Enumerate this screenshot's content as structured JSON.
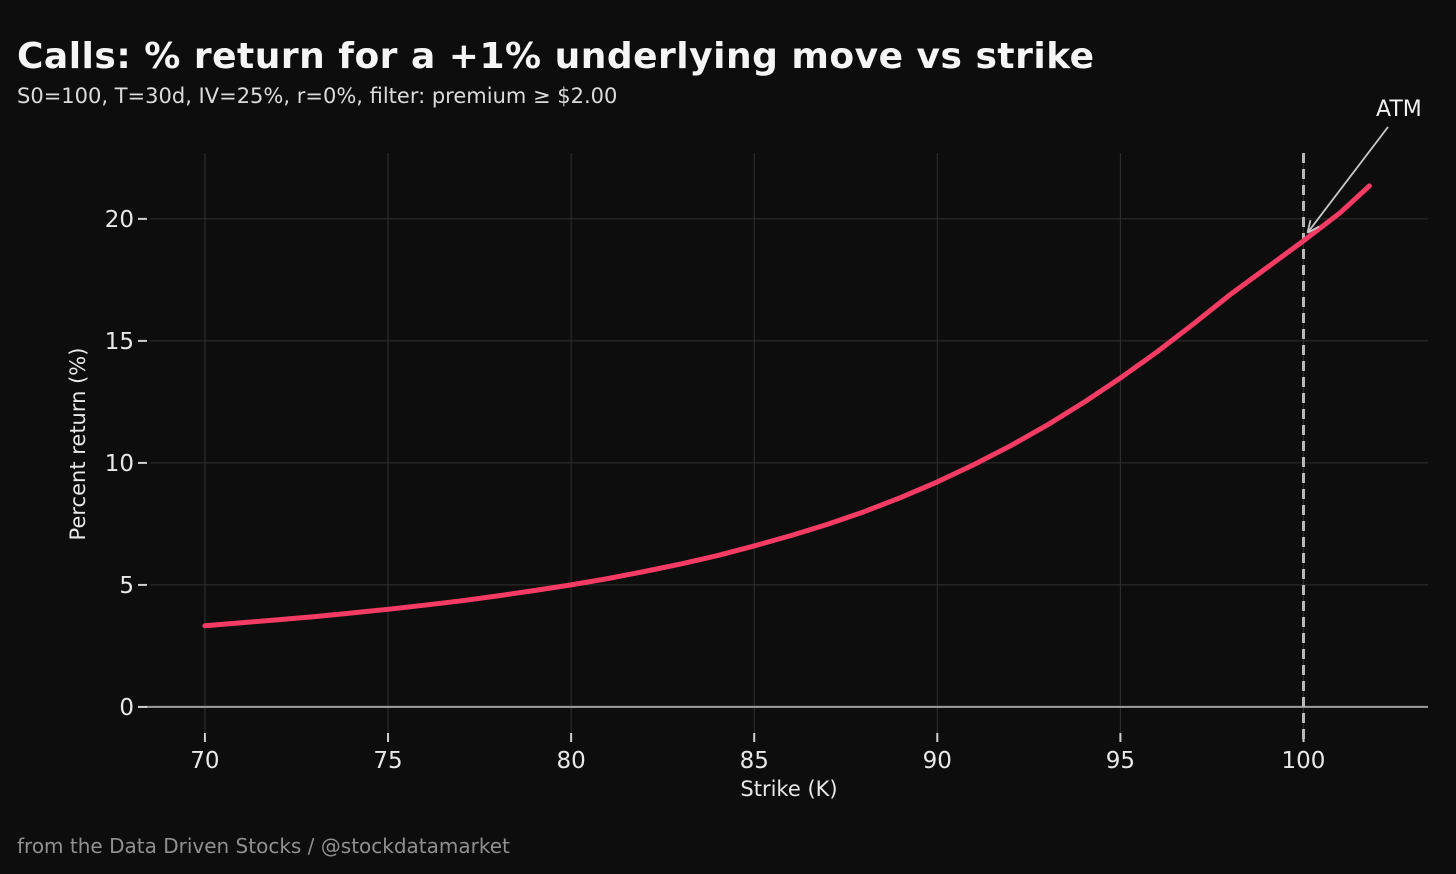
{
  "figure": {
    "background": "#0d0d0d"
  },
  "chart_data": {
    "type": "line",
    "title": "Calls: % return for a +1% underlying move vs strike",
    "subtitle": "S0=100, T=30d, IV=25%, r=0%, filter: premium ≥ $2.00",
    "xlabel": "Strike (K)",
    "ylabel": "Percent return (%)",
    "xlim": [
      68.5,
      103.4
    ],
    "ylim": [
      -1.15,
      22.7
    ],
    "x_ticks": [
      70,
      75,
      80,
      85,
      90,
      95,
      100
    ],
    "y_ticks": [
      0,
      5,
      10,
      15,
      20
    ],
    "grid": true,
    "legend": "none",
    "series": [
      {
        "name": "percent return for +1% underlying move",
        "color": "#f43b64",
        "line_width": 5,
        "points": [
          [
            70,
            3.33
          ],
          [
            71,
            3.45
          ],
          [
            72,
            3.57
          ],
          [
            73,
            3.7
          ],
          [
            74,
            3.85
          ],
          [
            75,
            4.0
          ],
          [
            76,
            4.17
          ],
          [
            77,
            4.35
          ],
          [
            78,
            4.55
          ],
          [
            79,
            4.77
          ],
          [
            80,
            5.0
          ],
          [
            81,
            5.26
          ],
          [
            82,
            5.55
          ],
          [
            83,
            5.86
          ],
          [
            84,
            6.2
          ],
          [
            85,
            6.6
          ],
          [
            86,
            7.02
          ],
          [
            87,
            7.48
          ],
          [
            88,
            8.0
          ],
          [
            89,
            8.58
          ],
          [
            90,
            9.22
          ],
          [
            91,
            9.93
          ],
          [
            92,
            10.7
          ],
          [
            93,
            11.55
          ],
          [
            94,
            12.48
          ],
          [
            95,
            13.48
          ],
          [
            96,
            14.55
          ],
          [
            97,
            15.7
          ],
          [
            98,
            16.9
          ],
          [
            99,
            18.0
          ],
          [
            100,
            19.1
          ],
          [
            101,
            20.25
          ],
          [
            101.8,
            21.35
          ]
        ]
      }
    ],
    "vline": {
      "x": 100,
      "style": "dashed",
      "color": "#b8b8b8"
    },
    "zero_line": {
      "y": 0,
      "color": "#9e9e9e"
    },
    "annotation": {
      "label": "ATM",
      "target": {
        "x": 100,
        "y": 19.1
      },
      "arrow_color": "#c8c8c8"
    },
    "colors": {
      "grid": "#303030",
      "tick_mark": "#cfcfcf",
      "tick_text": "#e8e8e8"
    }
  },
  "footer": {
    "credit": "from the Data Driven Stocks / @stockdatamarket"
  }
}
